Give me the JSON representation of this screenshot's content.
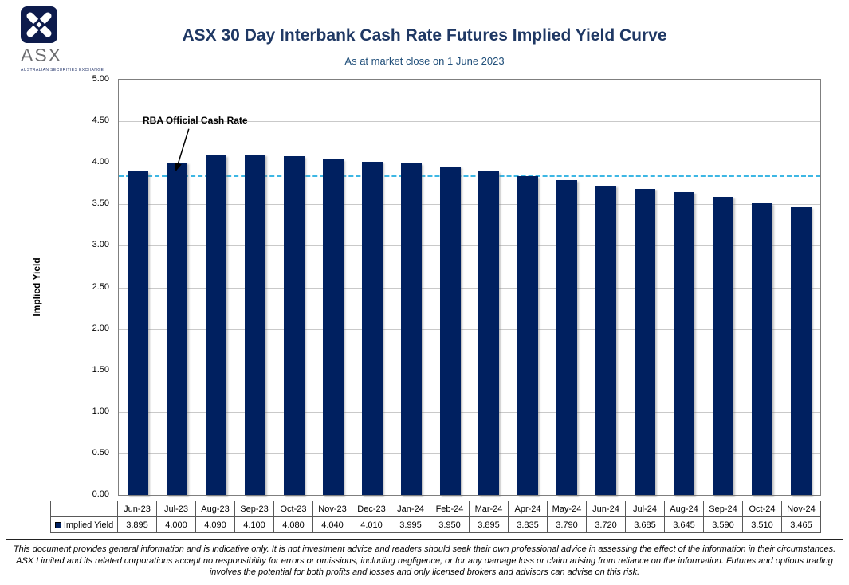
{
  "logo": {
    "brand": "ASX",
    "tagline": "AUSTRALIAN SECURITIES EXCHANGE"
  },
  "header": {
    "title": "ASX 30 Day Interbank Cash Rate Futures Implied Yield Curve",
    "subtitle": "As at market close on 1 June 2023"
  },
  "chart_data": {
    "type": "bar",
    "title": "ASX 30 Day Interbank Cash Rate Futures Implied Yield Curve",
    "subtitle": "As at market close on 1 June 2023",
    "xlabel": "",
    "ylabel": "Implied Yield",
    "ylim": [
      0,
      5
    ],
    "ytick_step": 0.5,
    "grid": true,
    "legend_position": "bottom-table",
    "categories": [
      "Jun-23",
      "Jul-23",
      "Aug-23",
      "Sep-23",
      "Oct-23",
      "Nov-23",
      "Dec-23",
      "Jan-24",
      "Feb-24",
      "Mar-24",
      "Apr-24",
      "May-24",
      "Jun-24",
      "Jul-24",
      "Aug-24",
      "Sep-24",
      "Oct-24",
      "Nov-24"
    ],
    "series": [
      {
        "name": "Implied Yield",
        "values": [
          3.895,
          4.0,
          4.09,
          4.1,
          4.08,
          4.04,
          4.01,
          3.995,
          3.95,
          3.895,
          3.835,
          3.79,
          3.72,
          3.685,
          3.645,
          3.59,
          3.51,
          3.465
        ]
      }
    ],
    "reference_line": {
      "label": "RBA Official Cash Rate",
      "value": 3.85
    },
    "colors": {
      "bar": "#002060",
      "reference_line": "#3DB7E4",
      "title": "#1F3864"
    }
  },
  "table": {
    "row_header": "Implied Yield"
  },
  "disclaimer": "This document provides general information and is indicative only. It is not investment advice and readers should seek their own professional advice in assessing the effect of the information in their circumstances. ASX Limited and its related corporations accept no responsibility for errors or omissions, including negligence, or for any damage loss or claim arising from reliance on the information. Futures and options trading involves the potential for both profits and losses and only licensed brokers and advisors can advise on this risk."
}
